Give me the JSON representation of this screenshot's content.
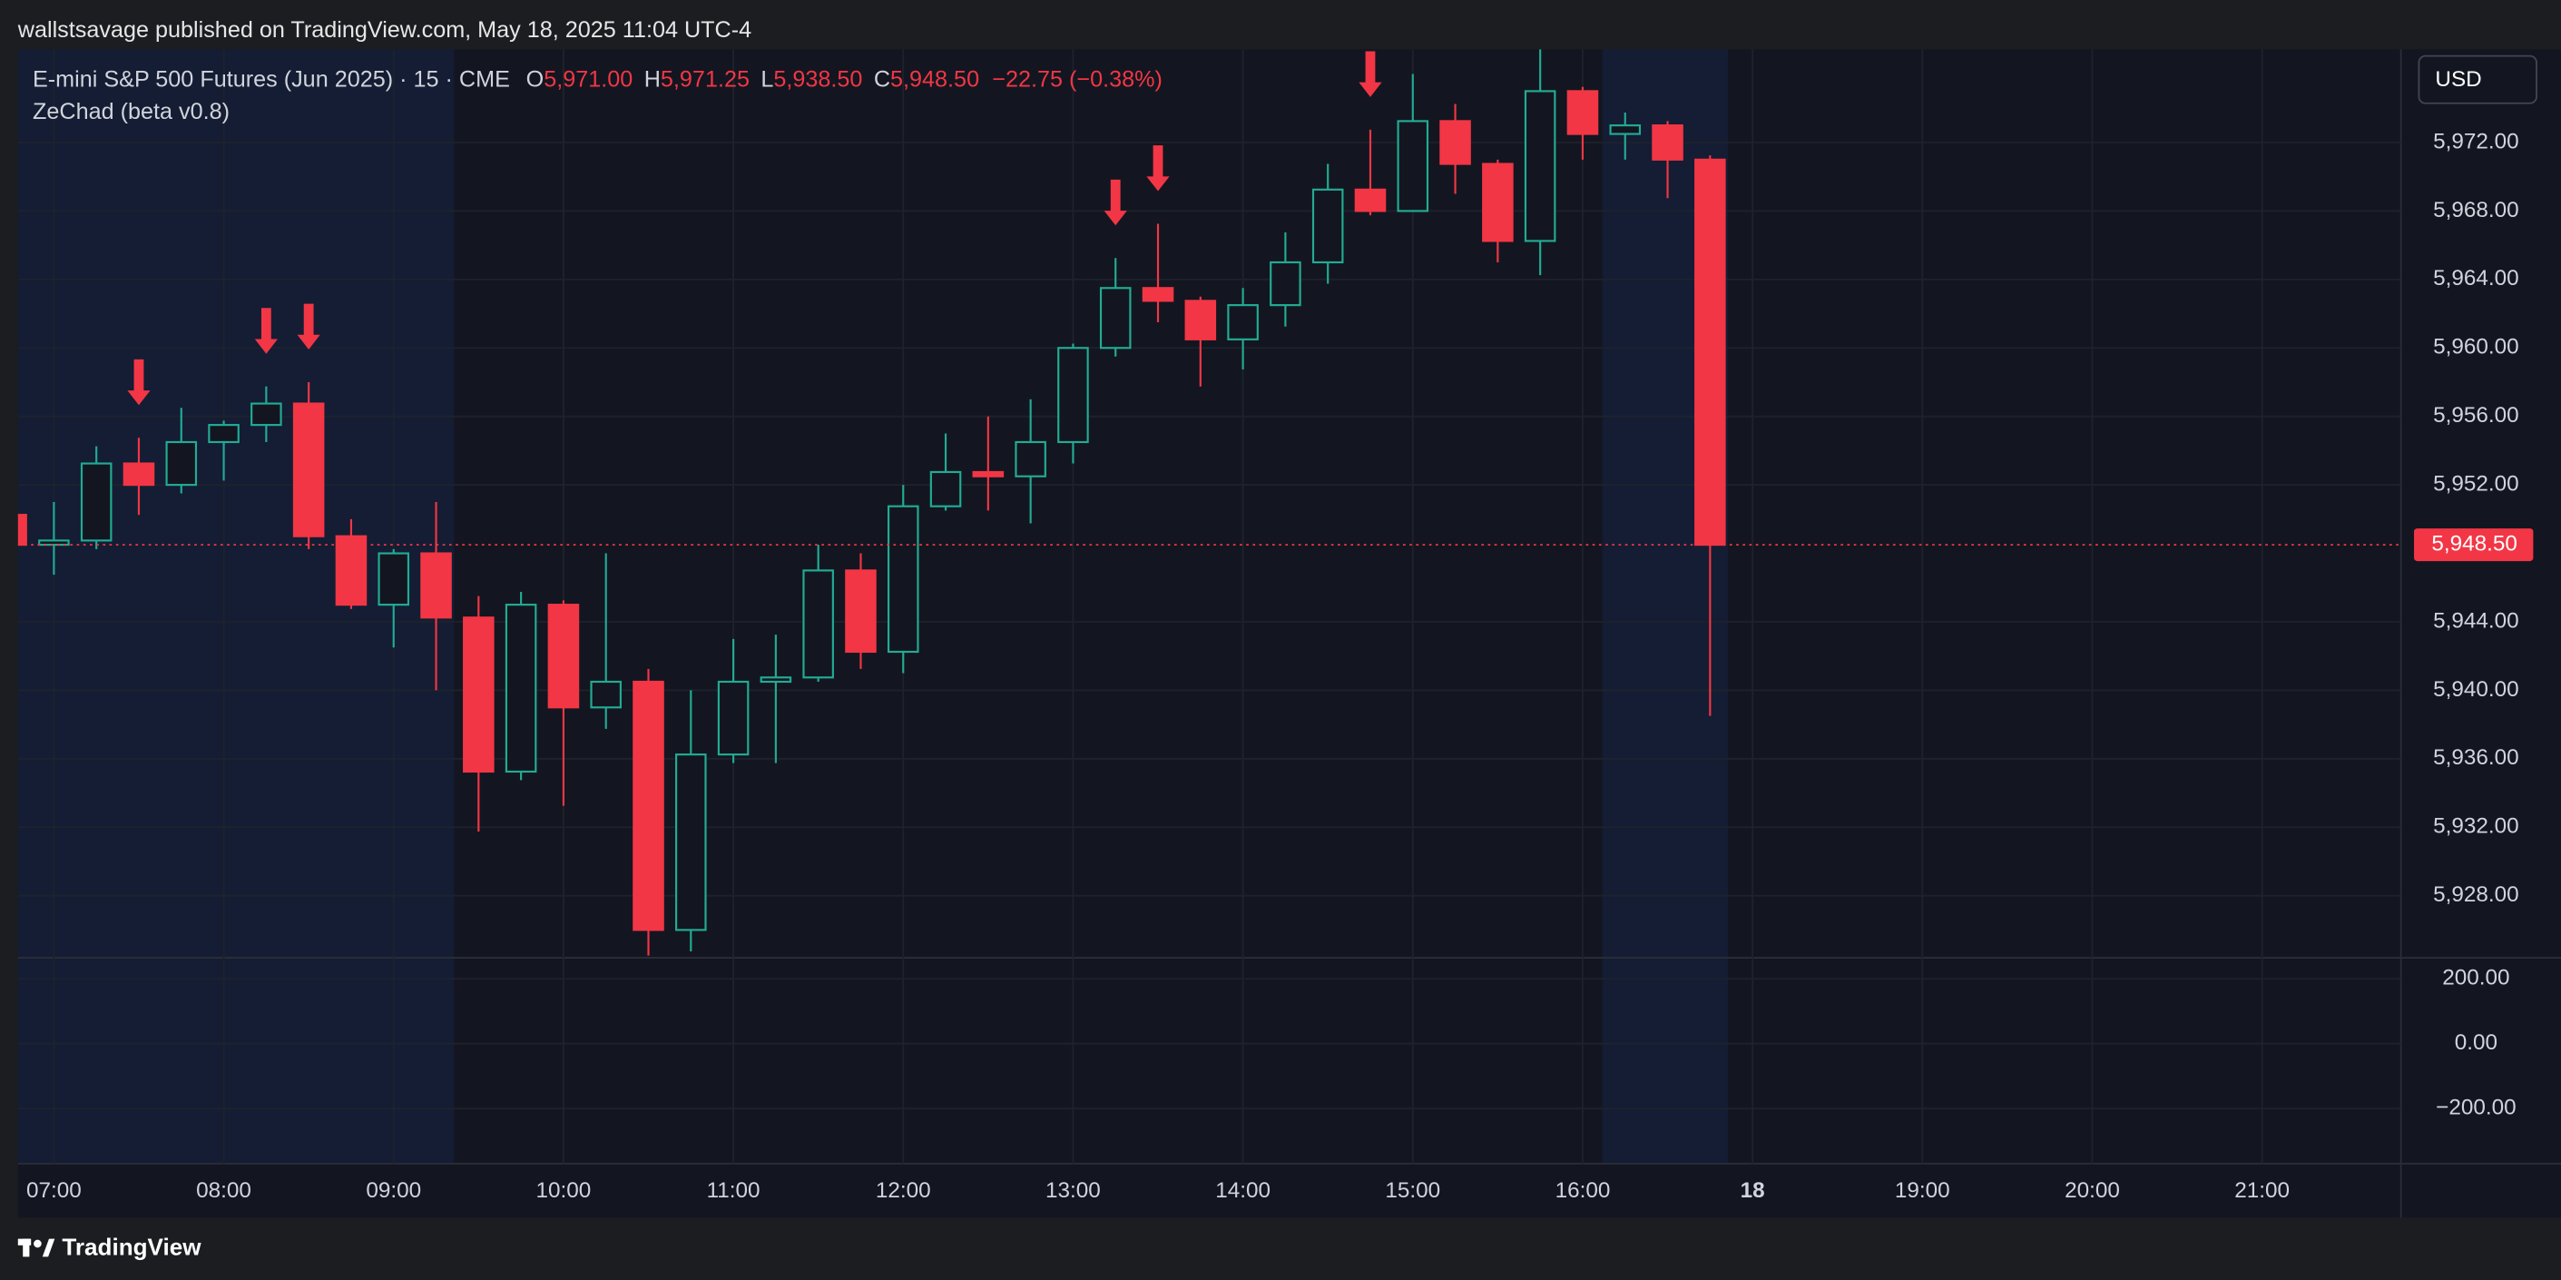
{
  "header": {
    "attribution": "wallstsavage published on TradingView.com, May 18, 2025 11:04 UTC-4",
    "brand": "TradingView"
  },
  "chart_data": {
    "type": "candlestick",
    "title": "E-mini S&P 500 Futures (Jun 2025) · 15 · CME",
    "ohlc_legend": [
      {
        "key": "O",
        "value": "5,971.00"
      },
      {
        "key": "H",
        "value": "5,971.25"
      },
      {
        "key": "L",
        "value": "5,938.50"
      },
      {
        "key": "C",
        "value": "5,948.50"
      }
    ],
    "change": "−22.75 (−0.38%)",
    "currency": "USD",
    "x": [
      "06:45",
      "07:00",
      "07:15",
      "07:30",
      "07:45",
      "08:00",
      "08:15",
      "08:30",
      "08:45",
      "09:00",
      "09:15",
      "09:30",
      "09:45",
      "10:00",
      "10:15",
      "10:30",
      "10:45",
      "11:00",
      "11:15",
      "11:30",
      "11:45",
      "12:00",
      "12:15",
      "12:30",
      "12:45",
      "13:00",
      "13:15",
      "13:30",
      "13:45",
      "14:00",
      "14:15",
      "14:30",
      "14:45",
      "15:00",
      "15:15",
      "15:30",
      "15:45",
      "16:00",
      "16:15",
      "16:30",
      "16:45"
    ],
    "open": [
      5950.25,
      5948.5,
      5948.75,
      5953.25,
      5952.0,
      5954.5,
      5955.5,
      5956.75,
      5949.0,
      5945.0,
      5948.0,
      5944.25,
      5935.25,
      5945.0,
      5939.0,
      5940.5,
      5926.0,
      5936.25,
      5940.5,
      5940.75,
      5947.0,
      5942.25,
      5950.75,
      5952.75,
      5952.5,
      5954.5,
      5960.0,
      5963.5,
      5962.75,
      5960.5,
      5962.5,
      5965.0,
      5969.25,
      5968.0,
      5973.25,
      5970.75,
      5966.25,
      5975.0,
      5972.5,
      5973.0,
      5971.0
    ],
    "high": [
      5950.5,
      5951.0,
      5954.25,
      5954.75,
      5956.5,
      5955.75,
      5957.75,
      5958.0,
      5950.0,
      5948.25,
      5951.0,
      5945.5,
      5945.75,
      5945.25,
      5948.0,
      5941.25,
      5940.0,
      5943.0,
      5943.25,
      5948.5,
      5948.0,
      5952.0,
      5955.0,
      5956.0,
      5957.0,
      5960.25,
      5965.25,
      5967.25,
      5963.0,
      5963.5,
      5966.75,
      5970.75,
      5972.75,
      5976.0,
      5974.25,
      5971.0,
      5977.5,
      5975.25,
      5973.75,
      5973.25,
      5971.25
    ],
    "low": [
      5948.25,
      5946.75,
      5948.25,
      5950.25,
      5951.5,
      5952.25,
      5954.5,
      5948.25,
      5944.75,
      5942.5,
      5940.0,
      5931.75,
      5934.75,
      5933.25,
      5937.75,
      5924.5,
      5924.75,
      5935.75,
      5935.75,
      5940.5,
      5941.25,
      5941.0,
      5950.5,
      5950.5,
      5949.75,
      5953.25,
      5959.5,
      5961.5,
      5957.75,
      5958.75,
      5961.25,
      5963.75,
      5967.75,
      5968.0,
      5969.0,
      5965.0,
      5964.25,
      5971.0,
      5971.0,
      5968.75,
      5938.5
    ],
    "close": [
      5948.5,
      5948.75,
      5953.25,
      5952.0,
      5954.5,
      5955.5,
      5956.75,
      5949.0,
      5945.0,
      5948.0,
      5944.25,
      5935.25,
      5945.0,
      5939.0,
      5940.5,
      5926.0,
      5936.25,
      5940.5,
      5940.75,
      5947.0,
      5942.25,
      5950.75,
      5952.75,
      5952.5,
      5954.5,
      5960.0,
      5963.5,
      5962.75,
      5960.5,
      5962.5,
      5965.0,
      5969.25,
      5968.0,
      5973.25,
      5970.75,
      5966.25,
      5975.0,
      5972.5,
      5973.0,
      5971.0,
      5948.5
    ],
    "up_color": "#22ab94",
    "down_color": "#f23645",
    "ylim": [
      5924.47,
      5977.44
    ],
    "yticks": [
      {
        "value": 5928,
        "label": "5,928.00"
      },
      {
        "value": 5932,
        "label": "5,932.00"
      },
      {
        "value": 5936,
        "label": "5,936.00"
      },
      {
        "value": 5940,
        "label": "5,940.00"
      },
      {
        "value": 5944,
        "label": "5,944.00"
      },
      {
        "value": 5952,
        "label": "5,952.00"
      },
      {
        "value": 5956,
        "label": "5,956.00"
      },
      {
        "value": 5960,
        "label": "5,960.00"
      },
      {
        "value": 5964,
        "label": "5,964.00"
      },
      {
        "value": 5968,
        "label": "5,968.00"
      },
      {
        "value": 5972,
        "label": "5,972.00"
      }
    ],
    "xticks": [
      "07:00",
      "08:00",
      "09:00",
      "10:00",
      "11:00",
      "12:00",
      "13:00",
      "14:00",
      "15:00",
      "16:00",
      "18",
      "19:00",
      "20:00",
      "21:00"
    ],
    "last_price": {
      "value": 5948.5,
      "label": "5,948.50"
    },
    "sell_signals": [
      "07:30",
      "08:15",
      "08:30",
      "13:15",
      "13:30",
      "14:45"
    ],
    "grid": true,
    "indicator": {
      "title": "ZeChad (beta v0.8)",
      "ylim": [
        -370,
        265
      ],
      "yticks": [
        {
          "value": 200,
          "label": "200.00"
        },
        {
          "value": 0,
          "label": "0.00"
        },
        {
          "value": -200,
          "label": "−200.00"
        }
      ]
    }
  }
}
